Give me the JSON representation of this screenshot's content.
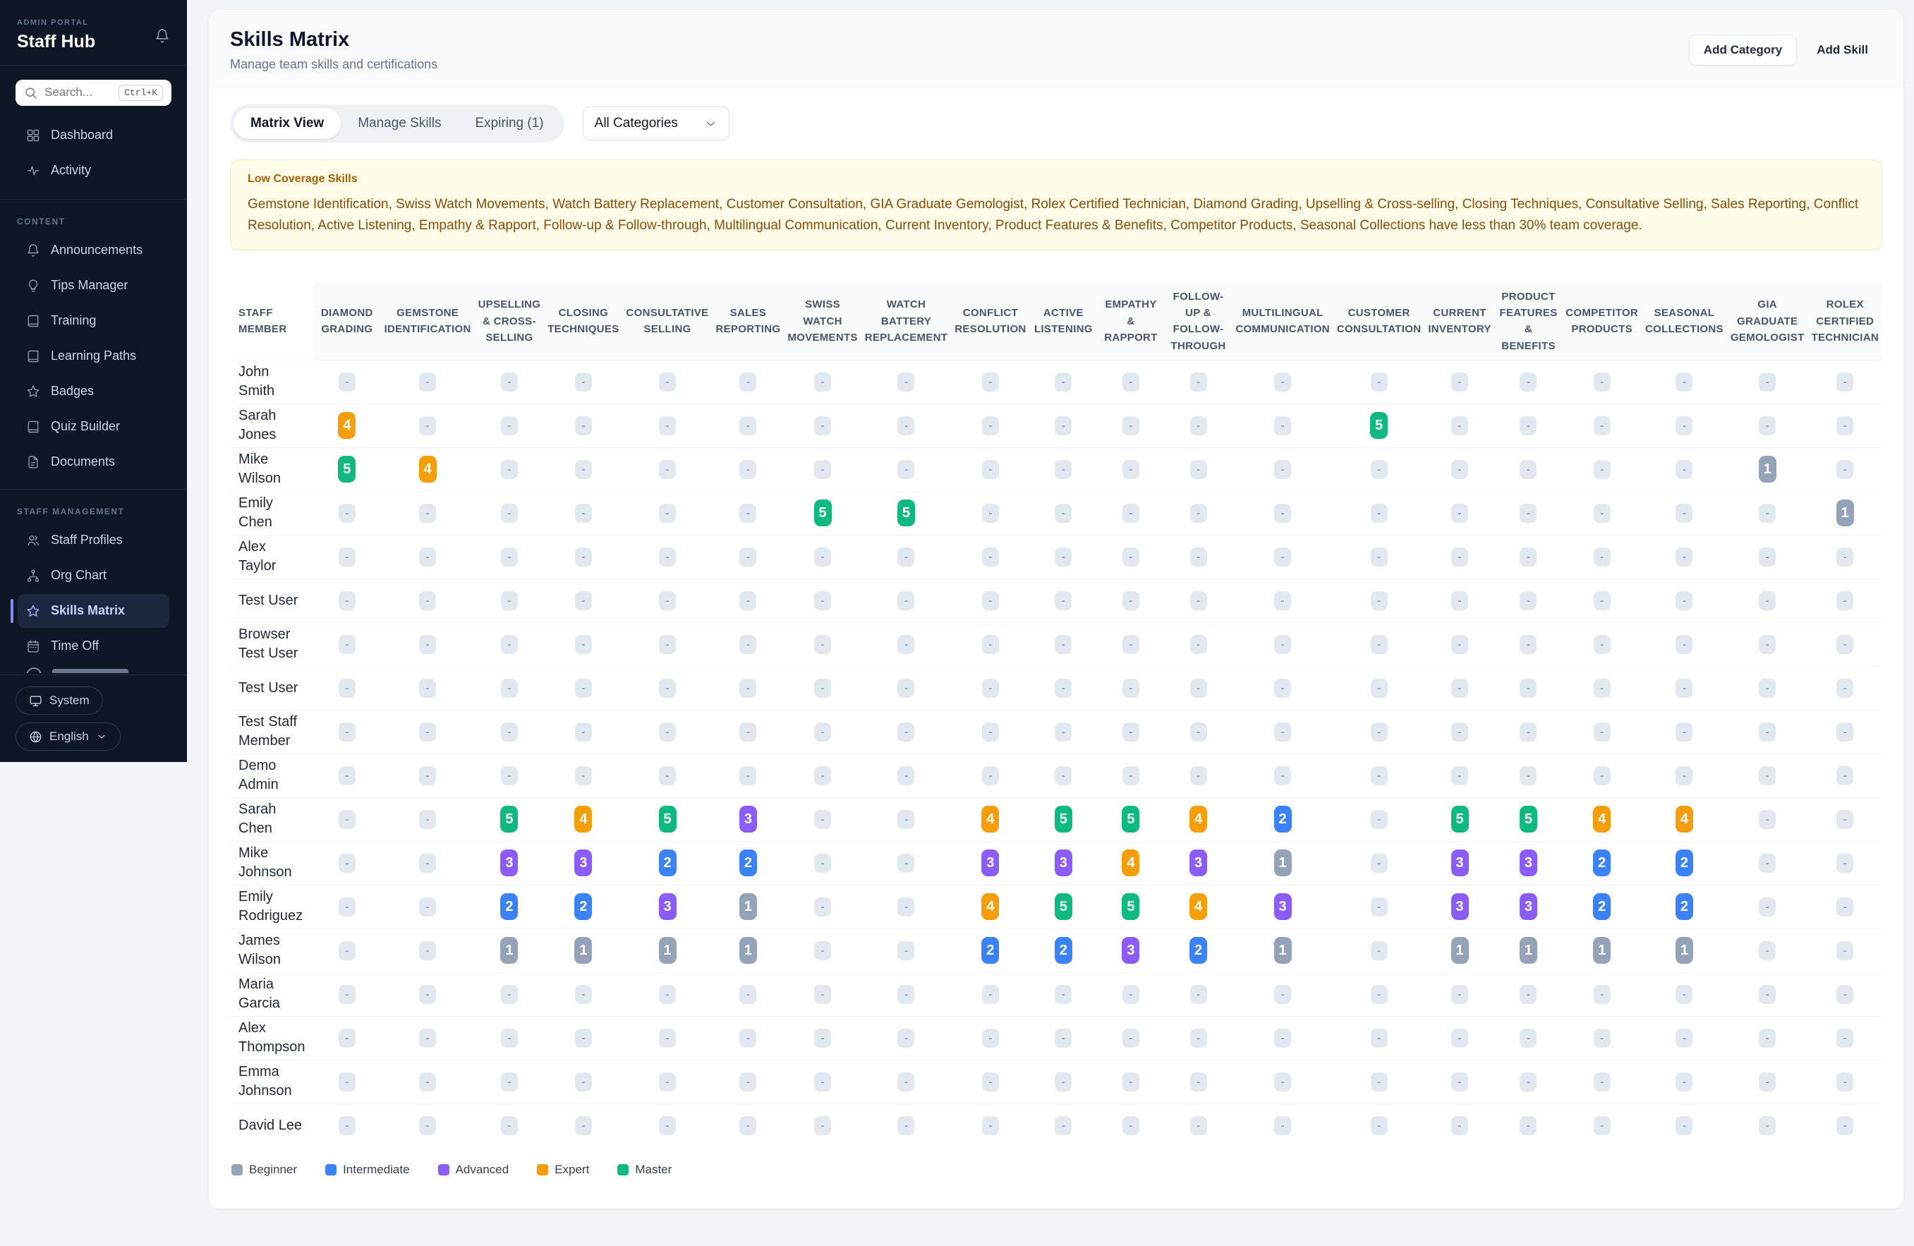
{
  "sidebar": {
    "portal_label": "ADMIN PORTAL",
    "app_name": "Staff Hub",
    "search": {
      "placeholder": "Search...",
      "shortcut": "Ctrl+K"
    },
    "nav_primary": [
      {
        "label": "Dashboard",
        "icon": "grid-icon"
      },
      {
        "label": "Activity",
        "icon": "activity-icon"
      }
    ],
    "sections": [
      {
        "label": "CONTENT",
        "items": [
          {
            "label": "Announcements",
            "icon": "bell-icon"
          },
          {
            "label": "Tips Manager",
            "icon": "lightbulb-icon"
          },
          {
            "label": "Training",
            "icon": "book-icon"
          },
          {
            "label": "Learning Paths",
            "icon": "book-icon"
          },
          {
            "label": "Badges",
            "icon": "star-icon"
          },
          {
            "label": "Quiz Builder",
            "icon": "book-icon"
          },
          {
            "label": "Documents",
            "icon": "document-icon"
          }
        ]
      },
      {
        "label": "STAFF MANAGEMENT",
        "items": [
          {
            "label": "Staff Profiles",
            "icon": "users-icon"
          },
          {
            "label": "Org Chart",
            "icon": "org-chart-icon"
          },
          {
            "label": "Skills Matrix",
            "icon": "star-icon",
            "active": true
          },
          {
            "label": "Time Off",
            "icon": "calendar-icon"
          }
        ]
      }
    ],
    "footer": {
      "theme_label": "System",
      "language_label": "English"
    }
  },
  "header": {
    "title": "Skills Matrix",
    "subtitle": "Manage team skills and certifications",
    "add_category_label": "Add Category",
    "add_skill_label": "Add Skill"
  },
  "tabs": [
    {
      "label": "Matrix View",
      "active": true
    },
    {
      "label": "Manage Skills",
      "active": false
    },
    {
      "label": "Expiring (1)",
      "active": false
    }
  ],
  "category_filter": {
    "value": "All Categories"
  },
  "warning": {
    "title": "Low Coverage Skills",
    "body": "Gemstone Identification, Swiss Watch Movements, Watch Battery Replacement, Customer Consultation, GIA Graduate Gemologist, Rolex Certified Technician, Diamond Grading, Upselling & Cross-selling, Closing Techniques, Consultative Selling, Sales Reporting, Conflict Resolution, Active Listening, Empathy & Rapport, Follow-up & Follow-through, Multilingual Communication, Current Inventory, Product Features & Benefits, Competitor Products, Seasonal Collections have less than 30% team coverage."
  },
  "matrix": {
    "first_column_header": "Staff Member",
    "empty_value": "-",
    "skills": [
      "Diamond Grading",
      "Gemstone Identification",
      "Upselling & Cross-Selling",
      "Closing Techniques",
      "Consultative Selling",
      "Sales Reporting",
      "Swiss Watch Movements",
      "Watch Battery Replacement",
      "Conflict Resolution",
      "Active Listening",
      "Empathy & Rapport",
      "Follow-Up & Follow-Through",
      "Multilingual Communication",
      "Customer Consultation",
      "Current Inventory",
      "Product Features & Benefits",
      "Competitor Products",
      "Seasonal Collections",
      "GIA Graduate Gemologist",
      "Rolex Certified Technician"
    ],
    "staff": [
      {
        "name": "John Smith",
        "levels": [
          null,
          null,
          null,
          null,
          null,
          null,
          null,
          null,
          null,
          null,
          null,
          null,
          null,
          null,
          null,
          null,
          null,
          null,
          null,
          null
        ]
      },
      {
        "name": "Sarah Jones",
        "levels": [
          4,
          null,
          null,
          null,
          null,
          null,
          null,
          null,
          null,
          null,
          null,
          null,
          null,
          5,
          null,
          null,
          null,
          null,
          null,
          null
        ]
      },
      {
        "name": "Mike Wilson",
        "levels": [
          5,
          4,
          null,
          null,
          null,
          null,
          null,
          null,
          null,
          null,
          null,
          null,
          null,
          null,
          null,
          null,
          null,
          null,
          1,
          null
        ]
      },
      {
        "name": "Emily Chen",
        "levels": [
          null,
          null,
          null,
          null,
          null,
          null,
          5,
          5,
          null,
          null,
          null,
          null,
          null,
          null,
          null,
          null,
          null,
          null,
          null,
          1
        ]
      },
      {
        "name": "Alex Taylor",
        "levels": [
          null,
          null,
          null,
          null,
          null,
          null,
          null,
          null,
          null,
          null,
          null,
          null,
          null,
          null,
          null,
          null,
          null,
          null,
          null,
          null
        ]
      },
      {
        "name": "Test User",
        "levels": [
          null,
          null,
          null,
          null,
          null,
          null,
          null,
          null,
          null,
          null,
          null,
          null,
          null,
          null,
          null,
          null,
          null,
          null,
          null,
          null
        ]
      },
      {
        "name": "Browser Test User",
        "levels": [
          null,
          null,
          null,
          null,
          null,
          null,
          null,
          null,
          null,
          null,
          null,
          null,
          null,
          null,
          null,
          null,
          null,
          null,
          null,
          null
        ]
      },
      {
        "name": "Test User",
        "levels": [
          null,
          null,
          null,
          null,
          null,
          null,
          null,
          null,
          null,
          null,
          null,
          null,
          null,
          null,
          null,
          null,
          null,
          null,
          null,
          null
        ]
      },
      {
        "name": "Test Staff Member",
        "levels": [
          null,
          null,
          null,
          null,
          null,
          null,
          null,
          null,
          null,
          null,
          null,
          null,
          null,
          null,
          null,
          null,
          null,
          null,
          null,
          null
        ]
      },
      {
        "name": "Demo Admin",
        "levels": [
          null,
          null,
          null,
          null,
          null,
          null,
          null,
          null,
          null,
          null,
          null,
          null,
          null,
          null,
          null,
          null,
          null,
          null,
          null,
          null
        ]
      },
      {
        "name": "Sarah Chen",
        "levels": [
          null,
          null,
          5,
          4,
          5,
          3,
          null,
          null,
          4,
          5,
          5,
          4,
          2,
          null,
          5,
          5,
          4,
          4,
          null,
          null
        ]
      },
      {
        "name": "Mike Johnson",
        "levels": [
          null,
          null,
          3,
          3,
          2,
          2,
          null,
          null,
          3,
          3,
          4,
          3,
          1,
          null,
          3,
          3,
          2,
          2,
          null,
          null
        ]
      },
      {
        "name": "Emily Rodriguez",
        "levels": [
          null,
          null,
          2,
          2,
          3,
          1,
          null,
          null,
          4,
          5,
          5,
          4,
          3,
          null,
          3,
          3,
          2,
          2,
          null,
          null
        ]
      },
      {
        "name": "James Wilson",
        "levels": [
          null,
          null,
          1,
          1,
          1,
          1,
          null,
          null,
          2,
          2,
          3,
          2,
          1,
          null,
          1,
          1,
          1,
          1,
          null,
          null
        ]
      },
      {
        "name": "Maria Garcia",
        "levels": [
          null,
          null,
          null,
          null,
          null,
          null,
          null,
          null,
          null,
          null,
          null,
          null,
          null,
          null,
          null,
          null,
          null,
          null,
          null,
          null
        ]
      },
      {
        "name": "Alex Thompson",
        "levels": [
          null,
          null,
          null,
          null,
          null,
          null,
          null,
          null,
          null,
          null,
          null,
          null,
          null,
          null,
          null,
          null,
          null,
          null,
          null,
          null
        ]
      },
      {
        "name": "Emma Johnson",
        "levels": [
          null,
          null,
          null,
          null,
          null,
          null,
          null,
          null,
          null,
          null,
          null,
          null,
          null,
          null,
          null,
          null,
          null,
          null,
          null,
          null
        ]
      },
      {
        "name": "David Lee",
        "levels": [
          null,
          null,
          null,
          null,
          null,
          null,
          null,
          null,
          null,
          null,
          null,
          null,
          null,
          null,
          null,
          null,
          null,
          null,
          null,
          null
        ]
      }
    ]
  },
  "legend": [
    {
      "label": "Beginner",
      "level": 1,
      "color": "#94a3b8"
    },
    {
      "label": "Intermediate",
      "level": 2,
      "color": "#3b82f6"
    },
    {
      "label": "Advanced",
      "level": 3,
      "color": "#8b5cf6"
    },
    {
      "label": "Expert",
      "level": 4,
      "color": "#f59e0b"
    },
    {
      "label": "Master",
      "level": 5,
      "color": "#10b981"
    }
  ],
  "colors": {
    "level_1": "#94a3b8",
    "level_2": "#3b82f6",
    "level_3": "#8b5cf6",
    "level_4": "#f59e0b",
    "level_5": "#10b981",
    "empty_badge": "#e2e8f0",
    "sidebar_bg": "#0f1626",
    "active_accent": "#818cf8",
    "warning_bg": "#fefce8"
  }
}
